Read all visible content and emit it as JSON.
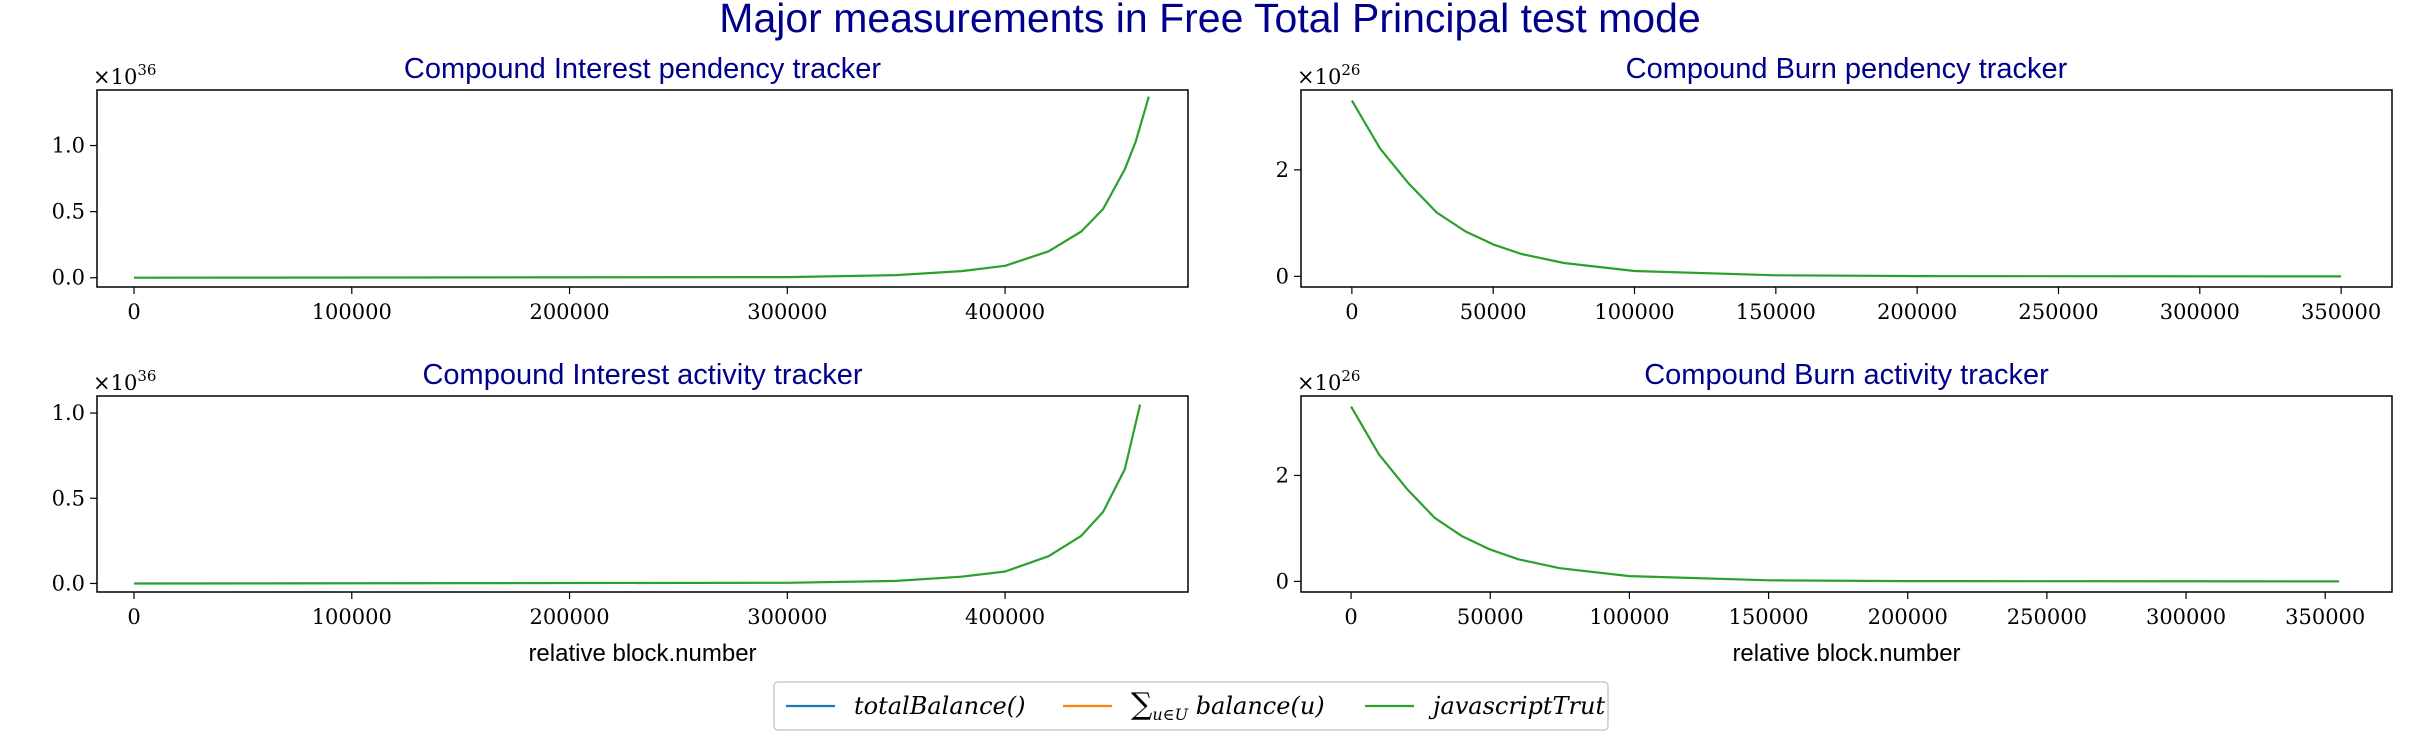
{
  "figure": {
    "suptitle": "Major measurements in Free Total Principal test mode"
  },
  "legend": {
    "placement": "bottom-center",
    "entries": [
      {
        "label": "totalBalance()",
        "color": "#1f77b4"
      },
      {
        "label": "∑u∈U balance(u)",
        "color": "#ff7f0e"
      },
      {
        "label": "javascriptTrut",
        "color": "#2ca02c"
      }
    ]
  },
  "chart_data": [
    {
      "type": "line",
      "title": "Compound Interest pendency tracker",
      "xlabel": "",
      "ylabel": "",
      "multiplier": "×10",
      "exponent": "36",
      "xlim": [
        -17000,
        484000
      ],
      "ylim": [
        -0.07,
        1.42
      ],
      "xticks": [
        0,
        100000,
        200000,
        300000,
        400000
      ],
      "yticks": [
        0.0,
        0.5,
        1.0
      ],
      "ytick_labels": [
        "0.0",
        "0.5",
        "1.0"
      ],
      "grid": false,
      "series": [
        {
          "name": "totalBalance()",
          "color": "#1f77b4",
          "visible": false,
          "x": [
            0,
            300000,
            350000,
            380000,
            400000,
            420000,
            435000,
            445000,
            455000,
            460000,
            466000
          ],
          "y": [
            0,
            0.005,
            0.02,
            0.05,
            0.09,
            0.2,
            0.35,
            0.52,
            0.82,
            1.03,
            1.37
          ]
        },
        {
          "name": "∑u∈U balance(u)",
          "color": "#ff7f0e",
          "visible": false,
          "x": [
            0,
            300000,
            350000,
            380000,
            400000,
            420000,
            435000,
            445000,
            455000,
            460000,
            466000
          ],
          "y": [
            0,
            0.005,
            0.02,
            0.05,
            0.09,
            0.2,
            0.35,
            0.52,
            0.82,
            1.03,
            1.37
          ]
        },
        {
          "name": "javascriptTrut",
          "color": "#2ca02c",
          "visible": true,
          "x": [
            0,
            300000,
            350000,
            380000,
            400000,
            420000,
            435000,
            445000,
            455000,
            460000,
            466000
          ],
          "y": [
            0,
            0.005,
            0.02,
            0.05,
            0.09,
            0.2,
            0.35,
            0.52,
            0.82,
            1.03,
            1.37
          ]
        }
      ]
    },
    {
      "type": "line",
      "title": "Compound Burn pendency tracker",
      "xlabel": "",
      "ylabel": "",
      "multiplier": "×10",
      "exponent": "26",
      "xlim": [
        -18000,
        368000
      ],
      "ylim": [
        -0.2,
        3.5
      ],
      "xticks": [
        0,
        50000,
        100000,
        150000,
        200000,
        250000,
        300000,
        350000
      ],
      "yticks": [
        0,
        2
      ],
      "ytick_labels": [
        "0",
        "2"
      ],
      "grid": false,
      "series": [
        {
          "name": "totalBalance()",
          "color": "#1f77b4",
          "visible": false,
          "x": [
            0,
            10000,
            20000,
            30000,
            40000,
            50000,
            60000,
            75000,
            100000,
            150000,
            200000,
            350000
          ],
          "y": [
            3.3,
            2.4,
            1.75,
            1.2,
            0.85,
            0.6,
            0.42,
            0.25,
            0.1,
            0.02,
            0.005,
            0.0
          ]
        },
        {
          "name": "∑u∈U balance(u)",
          "color": "#ff7f0e",
          "visible": false,
          "x": [
            0,
            10000,
            20000,
            30000,
            40000,
            50000,
            60000,
            75000,
            100000,
            150000,
            200000,
            350000
          ],
          "y": [
            3.3,
            2.4,
            1.75,
            1.2,
            0.85,
            0.6,
            0.42,
            0.25,
            0.1,
            0.02,
            0.005,
            0.0
          ]
        },
        {
          "name": "javascriptTrut",
          "color": "#2ca02c",
          "visible": true,
          "x": [
            0,
            10000,
            20000,
            30000,
            40000,
            50000,
            60000,
            75000,
            100000,
            150000,
            200000,
            350000
          ],
          "y": [
            3.3,
            2.4,
            1.75,
            1.2,
            0.85,
            0.6,
            0.42,
            0.25,
            0.1,
            0.02,
            0.005,
            0.0
          ]
        }
      ]
    },
    {
      "type": "line",
      "title": "Compound Interest activity tracker",
      "xlabel": "relative block.number",
      "ylabel": "",
      "multiplier": "×10",
      "exponent": "36",
      "xlim": [
        -17000,
        484000
      ],
      "ylim": [
        -0.05,
        1.1
      ],
      "xticks": [
        0,
        100000,
        200000,
        300000,
        400000
      ],
      "yticks": [
        0.0,
        0.5,
        1.0
      ],
      "ytick_labels": [
        "0.0",
        "0.5",
        "1.0"
      ],
      "grid": false,
      "series": [
        {
          "name": "totalBalance()",
          "color": "#1f77b4",
          "visible": false,
          "x": [
            0,
            300000,
            350000,
            380000,
            400000,
            420000,
            435000,
            445000,
            455000,
            462000
          ],
          "y": [
            0,
            0.004,
            0.015,
            0.04,
            0.07,
            0.16,
            0.28,
            0.42,
            0.67,
            1.05
          ]
        },
        {
          "name": "∑u∈U balance(u)",
          "color": "#ff7f0e",
          "visible": false,
          "x": [
            0,
            300000,
            350000,
            380000,
            400000,
            420000,
            435000,
            445000,
            455000,
            462000
          ],
          "y": [
            0,
            0.004,
            0.015,
            0.04,
            0.07,
            0.16,
            0.28,
            0.42,
            0.67,
            1.05
          ]
        },
        {
          "name": "javascriptTrut",
          "color": "#2ca02c",
          "visible": true,
          "x": [
            0,
            300000,
            350000,
            380000,
            400000,
            420000,
            435000,
            445000,
            455000,
            462000
          ],
          "y": [
            0,
            0.004,
            0.015,
            0.04,
            0.07,
            0.16,
            0.28,
            0.42,
            0.67,
            1.05
          ]
        }
      ]
    },
    {
      "type": "line",
      "title": "Compound Burn activity tracker",
      "xlabel": "relative block.number",
      "ylabel": "",
      "multiplier": "×10",
      "exponent": "26",
      "xlim": [
        -18000,
        374000
      ],
      "ylim": [
        -0.2,
        3.5
      ],
      "xticks": [
        0,
        50000,
        100000,
        150000,
        200000,
        250000,
        300000,
        350000
      ],
      "yticks": [
        0,
        2
      ],
      "ytick_labels": [
        "0",
        "2"
      ],
      "grid": false,
      "series": [
        {
          "name": "totalBalance()",
          "color": "#1f77b4",
          "visible": false,
          "x": [
            0,
            10000,
            20000,
            30000,
            40000,
            50000,
            60000,
            75000,
            100000,
            150000,
            200000,
            355000
          ],
          "y": [
            3.3,
            2.4,
            1.75,
            1.2,
            0.85,
            0.6,
            0.42,
            0.25,
            0.1,
            0.02,
            0.005,
            0.0
          ]
        },
        {
          "name": "∑u∈U balance(u)",
          "color": "#ff7f0e",
          "visible": false,
          "x": [
            0,
            10000,
            20000,
            30000,
            40000,
            50000,
            60000,
            75000,
            100000,
            150000,
            200000,
            355000
          ],
          "y": [
            3.3,
            2.4,
            1.75,
            1.2,
            0.85,
            0.6,
            0.42,
            0.25,
            0.1,
            0.02,
            0.005,
            0.0
          ]
        },
        {
          "name": "javascriptTrut",
          "color": "#2ca02c",
          "visible": true,
          "x": [
            0,
            10000,
            20000,
            30000,
            40000,
            50000,
            60000,
            75000,
            100000,
            150000,
            200000,
            355000
          ],
          "y": [
            3.3,
            2.4,
            1.75,
            1.2,
            0.85,
            0.6,
            0.42,
            0.25,
            0.1,
            0.02,
            0.005,
            0.0
          ]
        }
      ]
    }
  ]
}
